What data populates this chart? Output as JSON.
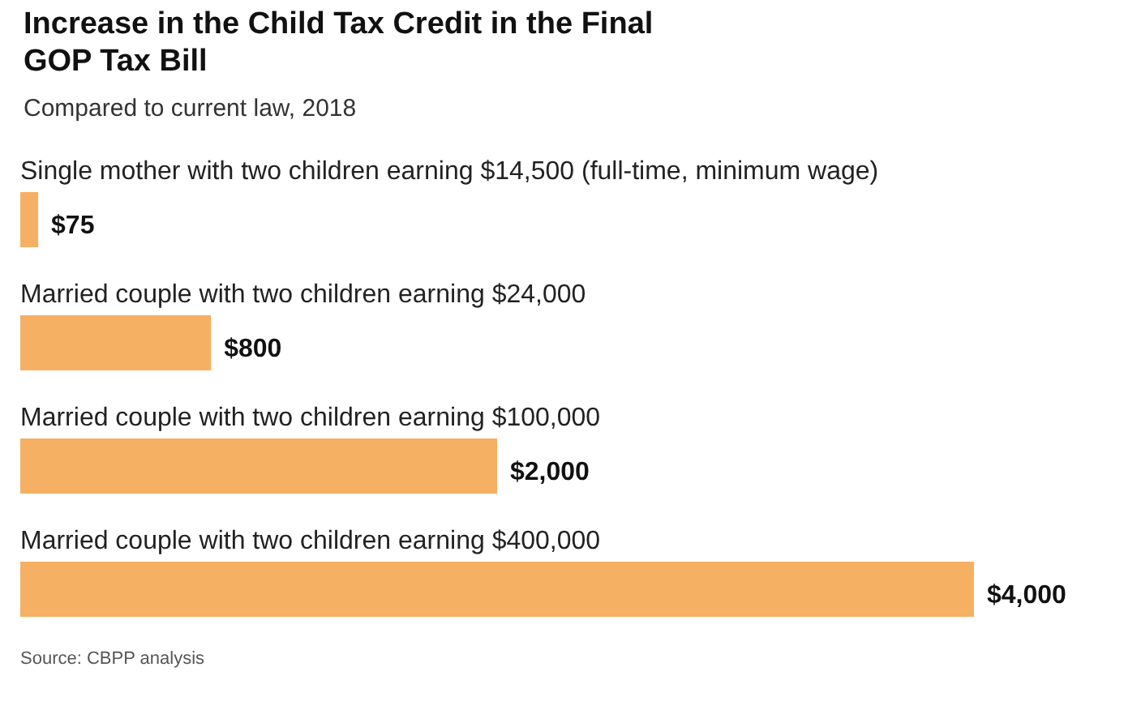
{
  "chart_data": {
    "type": "bar",
    "orientation": "horizontal",
    "title": "Increase in the Child Tax Credit in the Final GOP Tax Bill",
    "subtitle": "Compared to current law, 2018",
    "categories": [
      "Single mother with two children earning $14,500 (full-time, minimum wage)",
      "Married couple with two children earning $24,000",
      "Married couple with two children earning $100,000",
      "Married couple with two children earning $400,000"
    ],
    "values": [
      75,
      800,
      2000,
      4000
    ],
    "value_labels": [
      "$75",
      "$800",
      "$2,000",
      "$4,000"
    ],
    "color": "#f5b063",
    "annotations": [
      "Source: CBPP analysis"
    ]
  }
}
